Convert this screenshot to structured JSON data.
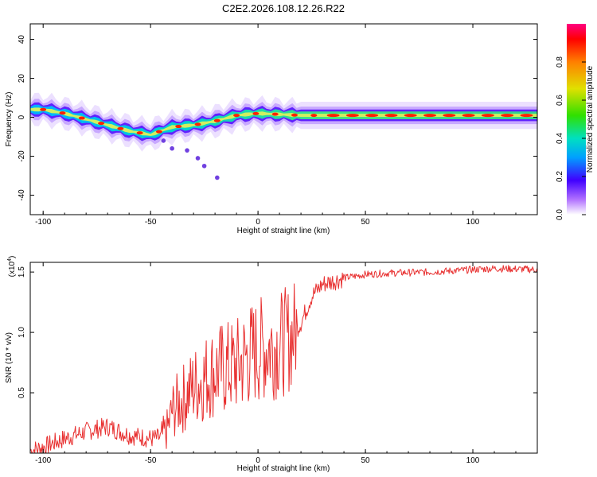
{
  "title": "C2E2.2026.108.12.26.R22",
  "colors": {
    "snr_line": "#e83030",
    "frame": "#000000",
    "background": "#ffffff"
  },
  "chart_data": [
    {
      "type": "heatmap",
      "name": "spectrogram",
      "xlabel": "Height of straight line (km)",
      "ylabel": "Frequency (Hz)",
      "xlim": [
        -106,
        130
      ],
      "ylim": [
        -50,
        48
      ],
      "xticks": [
        -100,
        -50,
        0,
        50,
        100
      ],
      "yticks": [
        40,
        20,
        0,
        -20,
        -40
      ],
      "ytick_labels": [
        "40",
        "20",
        "0",
        "-20",
        "-40"
      ],
      "ridge": {
        "x": [
          -106,
          -100,
          -90,
          -80,
          -70,
          -60,
          -50,
          -40,
          -30,
          -20,
          -10,
          0,
          20,
          50,
          80,
          100,
          130
        ],
        "y": [
          4,
          4,
          2,
          -1,
          -4,
          -7,
          -9,
          -5,
          -4,
          -2,
          1,
          2,
          1,
          1,
          1,
          1,
          1
        ]
      },
      "scatter_points": {
        "x": [
          -44,
          -40,
          -33,
          -28,
          -25,
          -19
        ],
        "y": [
          -12,
          -16,
          -17,
          -21,
          -25,
          -31
        ]
      },
      "colorbar": {
        "label": "Normalized spectral amplitude",
        "range": [
          0.0,
          1.0
        ],
        "ticks": [
          0.0,
          0.2,
          0.4,
          0.6,
          0.8
        ],
        "tick_labels": [
          "0.0",
          "0.2",
          "0.4",
          "0.6",
          "0.8"
        ]
      }
    },
    {
      "type": "line",
      "name": "snr",
      "xlabel": "Height of straight line (km)",
      "ylabel": "SNR (10 * v/v)",
      "scale_label": "(x10",
      "scale_exponent": "4",
      "xlim": [
        -106,
        130
      ],
      "ylim": [
        0,
        1.58
      ],
      "xticks": [
        -100,
        -50,
        0,
        50,
        100
      ],
      "yticks": [
        0.5,
        1.0,
        1.5
      ],
      "ytick_labels": [
        "0.5",
        "1.0",
        "1.5"
      ],
      "series": [
        {
          "name": "SNR",
          "x": [
            -106,
            -100,
            -90,
            -80,
            -70,
            -60,
            -50,
            -45,
            -42,
            -40,
            -35,
            -30,
            -25,
            -20,
            -15,
            -10,
            -5,
            0,
            5,
            10,
            15,
            20,
            25,
            30,
            40,
            50,
            60,
            80,
            100,
            110,
            130
          ],
          "y": [
            0.02,
            0.05,
            0.12,
            0.18,
            0.22,
            0.15,
            0.12,
            0.13,
            0.2,
            0.35,
            0.45,
            0.55,
            0.62,
            0.68,
            0.7,
            0.72,
            0.8,
            0.85,
            0.88,
            0.9,
            0.95,
            1.08,
            1.3,
            1.4,
            1.45,
            1.48,
            1.49,
            1.5,
            1.52,
            1.53,
            1.52
          ]
        }
      ]
    }
  ]
}
